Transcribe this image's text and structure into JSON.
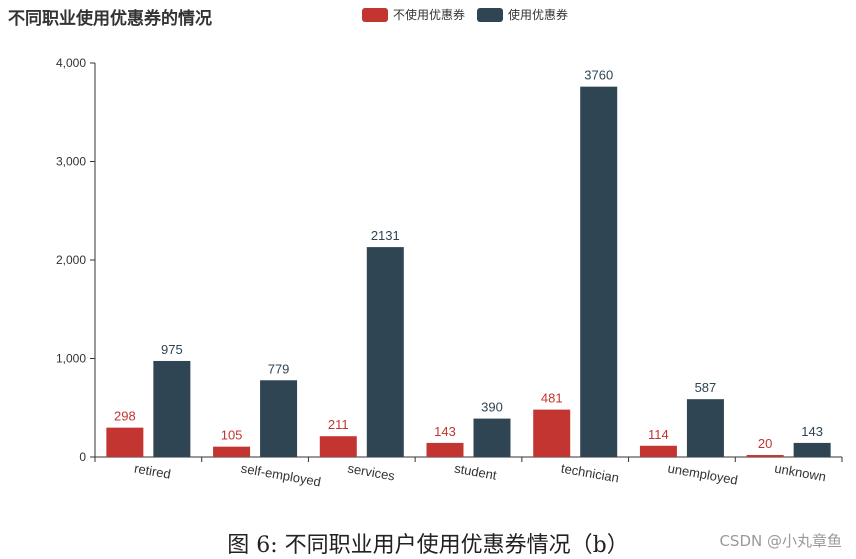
{
  "chart_data": {
    "type": "bar",
    "title": "不同职业使用优惠券的情况",
    "categories": [
      "retired",
      "self-employed",
      "services",
      "student",
      "technician",
      "unemployed",
      "unknown"
    ],
    "series": [
      {
        "name": "不使用优惠券",
        "color": "#c23531",
        "values": [
          298,
          105,
          211,
          143,
          481,
          114,
          20
        ]
      },
      {
        "name": "使用优惠券",
        "color": "#2f4554",
        "values": [
          975,
          779,
          2131,
          390,
          3760,
          587,
          143
        ]
      }
    ],
    "ylim": [
      0,
      4000
    ],
    "yticks": [
      0,
      1000,
      2000,
      3000,
      4000
    ],
    "ytick_labels": [
      "0",
      "1,000",
      "2,000",
      "3,000",
      "4,000"
    ],
    "legend_position": "top-center",
    "grid": false
  },
  "caption": "图 6: 不同职业用户使用优惠券情况（b）",
  "watermark": "CSDN @小丸章鱼"
}
